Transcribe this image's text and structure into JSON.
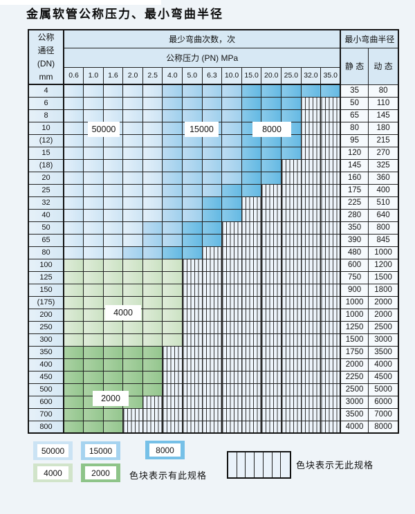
{
  "page": {
    "title": "金属软管公称压力、最小弯曲半径"
  },
  "table": {
    "header": {
      "dn_lines": [
        "公称",
        "通径",
        "(DN)",
        "mm"
      ],
      "bend_cycles": "最少弯曲次数，次",
      "pressure": "公称压力 (PN) MPa",
      "radius": "最小弯曲半径",
      "static": "静 态",
      "dynamic": "动 态",
      "pressure_columns": [
        "0.6",
        "1.0",
        "1.6",
        "2.0",
        "2.5",
        "4.0",
        "5.0",
        "6.3",
        "10.0",
        "15.0",
        "20.0",
        "25.0",
        "32.0",
        "35.0"
      ]
    },
    "region_labels": {
      "b50000": "50000",
      "b15000": "15000",
      "b8000": "8000",
      "b4000": "4000",
      "b2000": "2000"
    },
    "rows": [
      {
        "dn": "4",
        "static": "35",
        "dynamic": "80",
        "cells": [
          "50000",
          "50000",
          "50000",
          "50000",
          "50000",
          "15000",
          "15000",
          "15000",
          "15000",
          "8000",
          "8000",
          "8000",
          "8000",
          "8000"
        ]
      },
      {
        "dn": "6",
        "static": "50",
        "dynamic": "110",
        "cells": [
          "50000",
          "50000",
          "50000",
          "50000",
          "50000",
          "15000",
          "15000",
          "15000",
          "15000",
          "8000",
          "8000",
          "8000",
          "none",
          "none"
        ]
      },
      {
        "dn": "8",
        "static": "65",
        "dynamic": "145",
        "cells": [
          "50000",
          "50000",
          "50000",
          "50000",
          "50000",
          "15000",
          "15000",
          "15000",
          "15000",
          "8000",
          "8000",
          "8000",
          "none",
          "none"
        ]
      },
      {
        "dn": "10",
        "static": "80",
        "dynamic": "180",
        "cells": [
          "50000",
          "50000",
          "50000",
          "50000",
          "50000",
          "15000",
          "15000",
          "15000",
          "15000",
          "8000",
          "8000",
          "8000",
          "none",
          "none"
        ]
      },
      {
        "dn": "(12)",
        "static": "95",
        "dynamic": "215",
        "cells": [
          "50000",
          "50000",
          "50000",
          "50000",
          "50000",
          "15000",
          "15000",
          "15000",
          "15000",
          "8000",
          "8000",
          "8000",
          "none",
          "none"
        ]
      },
      {
        "dn": "15",
        "static": "120",
        "dynamic": "270",
        "cells": [
          "50000",
          "50000",
          "50000",
          "50000",
          "50000",
          "15000",
          "15000",
          "15000",
          "15000",
          "8000",
          "8000",
          "8000",
          "none",
          "none"
        ]
      },
      {
        "dn": "(18)",
        "static": "145",
        "dynamic": "325",
        "cells": [
          "50000",
          "50000",
          "50000",
          "50000",
          "50000",
          "15000",
          "15000",
          "15000",
          "15000",
          "8000",
          "8000",
          "none",
          "none",
          "none"
        ]
      },
      {
        "dn": "20",
        "static": "160",
        "dynamic": "360",
        "cells": [
          "50000",
          "50000",
          "50000",
          "50000",
          "50000",
          "15000",
          "15000",
          "15000",
          "15000",
          "8000",
          "8000",
          "none",
          "none",
          "none"
        ]
      },
      {
        "dn": "25",
        "static": "175",
        "dynamic": "400",
        "cells": [
          "50000",
          "50000",
          "50000",
          "50000",
          "50000",
          "15000",
          "15000",
          "15000",
          "8000",
          "8000",
          "none",
          "none",
          "none",
          "none"
        ]
      },
      {
        "dn": "32",
        "static": "225",
        "dynamic": "510",
        "cells": [
          "50000",
          "50000",
          "50000",
          "50000",
          "50000",
          "15000",
          "15000",
          "8000",
          "8000",
          "none",
          "none",
          "none",
          "none",
          "none"
        ]
      },
      {
        "dn": "40",
        "static": "280",
        "dynamic": "640",
        "cells": [
          "50000",
          "50000",
          "50000",
          "50000",
          "50000",
          "15000",
          "15000",
          "8000",
          "8000",
          "none",
          "none",
          "none",
          "none",
          "none"
        ]
      },
      {
        "dn": "50",
        "static": "350",
        "dynamic": "800",
        "cells": [
          "50000",
          "50000",
          "50000",
          "50000",
          "15000",
          "15000",
          "8000",
          "8000",
          "none",
          "none",
          "none",
          "none",
          "none",
          "none"
        ]
      },
      {
        "dn": "65",
        "static": "390",
        "dynamic": "845",
        "cells": [
          "50000",
          "50000",
          "50000",
          "50000",
          "15000",
          "15000",
          "8000",
          "8000",
          "none",
          "none",
          "none",
          "none",
          "none",
          "none"
        ]
      },
      {
        "dn": "80",
        "static": "480",
        "dynamic": "1000",
        "cells": [
          "50000",
          "50000",
          "50000",
          "15000",
          "15000",
          "8000",
          "8000",
          "none",
          "none",
          "none",
          "none",
          "none",
          "none",
          "none"
        ]
      },
      {
        "dn": "100",
        "static": "600",
        "dynamic": "1200",
        "cells": [
          "4000",
          "4000",
          "4000",
          "4000",
          "4000",
          "4000",
          "none",
          "none",
          "none",
          "none",
          "none",
          "none",
          "none",
          "none"
        ]
      },
      {
        "dn": "125",
        "static": "750",
        "dynamic": "1500",
        "cells": [
          "4000",
          "4000",
          "4000",
          "4000",
          "4000",
          "4000",
          "none",
          "none",
          "none",
          "none",
          "none",
          "none",
          "none",
          "none"
        ]
      },
      {
        "dn": "150",
        "static": "900",
        "dynamic": "1800",
        "cells": [
          "4000",
          "4000",
          "4000",
          "4000",
          "4000",
          "4000",
          "none",
          "none",
          "none",
          "none",
          "none",
          "none",
          "none",
          "none"
        ]
      },
      {
        "dn": "(175)",
        "static": "1000",
        "dynamic": "2000",
        "cells": [
          "4000",
          "4000",
          "4000",
          "4000",
          "4000",
          "4000",
          "none",
          "none",
          "none",
          "none",
          "none",
          "none",
          "none",
          "none"
        ]
      },
      {
        "dn": "200",
        "static": "1000",
        "dynamic": "2000",
        "cells": [
          "4000",
          "4000",
          "4000",
          "4000",
          "4000",
          "4000",
          "none",
          "none",
          "none",
          "none",
          "none",
          "none",
          "none",
          "none"
        ]
      },
      {
        "dn": "250",
        "static": "1250",
        "dynamic": "2500",
        "cells": [
          "4000",
          "4000",
          "4000",
          "4000",
          "4000",
          "4000",
          "none",
          "none",
          "none",
          "none",
          "none",
          "none",
          "none",
          "none"
        ]
      },
      {
        "dn": "300",
        "static": "1500",
        "dynamic": "3000",
        "cells": [
          "4000",
          "4000",
          "4000",
          "4000",
          "4000",
          "4000",
          "none",
          "none",
          "none",
          "none",
          "none",
          "none",
          "none",
          "none"
        ]
      },
      {
        "dn": "350",
        "static": "1750",
        "dynamic": "3500",
        "cells": [
          "2000",
          "2000",
          "2000",
          "2000",
          "2000",
          "none",
          "none",
          "none",
          "none",
          "none",
          "none",
          "none",
          "none",
          "none"
        ]
      },
      {
        "dn": "400",
        "static": "2000",
        "dynamic": "4000",
        "cells": [
          "2000",
          "2000",
          "2000",
          "2000",
          "2000",
          "none",
          "none",
          "none",
          "none",
          "none",
          "none",
          "none",
          "none",
          "none"
        ]
      },
      {
        "dn": "450",
        "static": "2250",
        "dynamic": "4500",
        "cells": [
          "2000",
          "2000",
          "2000",
          "2000",
          "2000",
          "none",
          "none",
          "none",
          "none",
          "none",
          "none",
          "none",
          "none",
          "none"
        ]
      },
      {
        "dn": "500",
        "static": "2500",
        "dynamic": "5000",
        "cells": [
          "2000",
          "2000",
          "2000",
          "2000",
          "2000",
          "none",
          "none",
          "none",
          "none",
          "none",
          "none",
          "none",
          "none",
          "none"
        ]
      },
      {
        "dn": "600",
        "static": "3000",
        "dynamic": "6000",
        "cells": [
          "2000",
          "2000",
          "2000",
          "2000",
          "none",
          "none",
          "none",
          "none",
          "none",
          "none",
          "none",
          "none",
          "none",
          "none"
        ]
      },
      {
        "dn": "700",
        "static": "3500",
        "dynamic": "7000",
        "cells": [
          "2000",
          "2000",
          "2000",
          "none",
          "none",
          "none",
          "none",
          "none",
          "none",
          "none",
          "none",
          "none",
          "none",
          "none"
        ]
      },
      {
        "dn": "800",
        "static": "4000",
        "dynamic": "8000",
        "cells": [
          "2000",
          "2000",
          "2000",
          "none",
          "none",
          "none",
          "none",
          "none",
          "none",
          "none",
          "none",
          "none",
          "none",
          "none"
        ]
      }
    ]
  },
  "legend": {
    "items": [
      {
        "label": "50000",
        "color": "#cbe3f4"
      },
      {
        "label": "15000",
        "color": "#a6d3ef"
      },
      {
        "label": "8000",
        "color": "#76c0e7"
      },
      {
        "label": "4000",
        "color": "#d1e4ca"
      },
      {
        "label": "2000",
        "color": "#8ec489"
      }
    ],
    "has_spec": "色块表示有此规格",
    "no_spec": "色块表示无此规格"
  },
  "colors": {
    "border": "#222222",
    "hatch_bg": "#edf4fb",
    "header_bg": "#d7e8f4"
  }
}
